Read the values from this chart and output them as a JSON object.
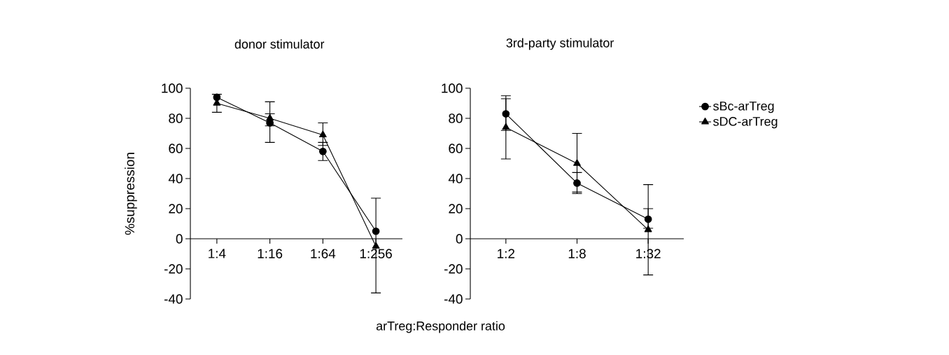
{
  "chart_data": [
    {
      "type": "line",
      "title": "donor stimulator",
      "ylabel": "%suppression",
      "xlabel": "arTreg:Responder ratio",
      "categories": [
        "1:4",
        "1:16",
        "1:64",
        "1:256"
      ],
      "ylim": [
        -40,
        100
      ],
      "yticks": [
        -40,
        -20,
        0,
        20,
        40,
        60,
        80,
        100
      ],
      "legend": false,
      "line_style": "solid",
      "series": [
        {
          "color": "#000000",
          "marker": "circle",
          "values": [
            94,
            77,
            58,
            5
          ],
          "errors": [
            null,
            [
              64,
              91
            ],
            [
              52,
              64
            ],
            null
          ]
        },
        {
          "color": "#000000",
          "marker": "triangle",
          "values": [
            90,
            80,
            69,
            -5
          ],
          "errors": [
            [
              84,
              96
            ],
            [
              75,
              83
            ],
            [
              62,
              77
            ],
            [
              -36,
              27
            ]
          ]
        }
      ]
    },
    {
      "type": "line",
      "title": "3rd-party stimulator",
      "categories": [
        "1:2",
        "1:8",
        "1:32"
      ],
      "ylim": [
        -40,
        100
      ],
      "yticks": [
        -40,
        -20,
        0,
        20,
        40,
        60,
        80,
        100
      ],
      "legend": "top right",
      "line_style": "solid",
      "series": [
        {
          "name": "sBc-arTreg",
          "color": "#000000",
          "marker": "circle",
          "values": [
            83,
            37,
            13
          ],
          "errors": [
            [
              72,
              93
            ],
            [
              31,
              44
            ],
            [
              7,
              20
            ]
          ]
        },
        {
          "name": "sDC-arTreg",
          "color": "#000000",
          "marker": "triangle",
          "values": [
            74,
            50,
            6
          ],
          "errors": [
            [
              53,
              95
            ],
            [
              30,
              70
            ],
            [
              -24,
              36
            ]
          ]
        }
      ]
    }
  ]
}
